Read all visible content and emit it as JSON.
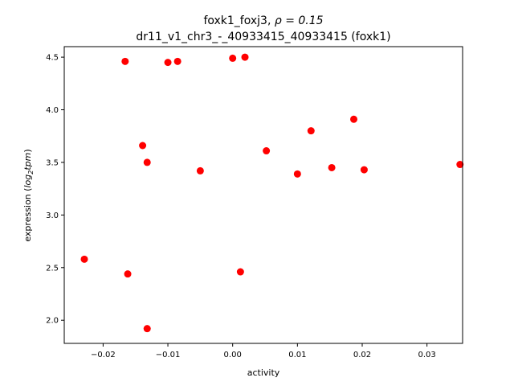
{
  "chart_data": {
    "type": "scatter",
    "title_line1": "foxk1_foxj3, ",
    "title_rho": "ρ = 0.15",
    "title_line2": "dr11_v1_chr3_-_40933415_40933415 (foxk1)",
    "xlabel": "activity",
    "ylabel_prefix": "expression (",
    "ylabel_math": "log",
    "ylabel_sub": "2",
    "ylabel_math2": "tpm",
    "ylabel_suffix": ")",
    "xlim": [
      -0.026,
      0.0355
    ],
    "ylim": [
      1.78,
      4.6
    ],
    "xticks": [
      -0.02,
      -0.01,
      0.0,
      0.01,
      0.02,
      0.03
    ],
    "xtick_labels": [
      "−0.02",
      "−0.01",
      "0.00",
      "0.01",
      "0.02",
      "0.03"
    ],
    "yticks": [
      2.0,
      2.5,
      3.0,
      3.5,
      4.0,
      4.5
    ],
    "ytick_labels": [
      "2.0",
      "2.5",
      "3.0",
      "3.5",
      "4.0",
      "4.5"
    ],
    "point_color": "#ff0000",
    "points": [
      {
        "x": -0.0229,
        "y": 2.58
      },
      {
        "x": -0.0166,
        "y": 4.46
      },
      {
        "x": -0.0162,
        "y": 2.44
      },
      {
        "x": -0.0139,
        "y": 3.66
      },
      {
        "x": -0.0132,
        "y": 3.5
      },
      {
        "x": -0.0132,
        "y": 1.92
      },
      {
        "x": -0.01,
        "y": 4.45
      },
      {
        "x": -0.0085,
        "y": 4.46
      },
      {
        "x": -0.005,
        "y": 3.42
      },
      {
        "x": 0.0,
        "y": 4.49
      },
      {
        "x": 0.0012,
        "y": 2.46
      },
      {
        "x": 0.0019,
        "y": 4.5
      },
      {
        "x": 0.0052,
        "y": 3.61
      },
      {
        "x": 0.01,
        "y": 3.39
      },
      {
        "x": 0.0121,
        "y": 3.8
      },
      {
        "x": 0.0153,
        "y": 3.45
      },
      {
        "x": 0.0187,
        "y": 3.91
      },
      {
        "x": 0.0203,
        "y": 3.43
      },
      {
        "x": 0.0351,
        "y": 3.48
      }
    ]
  }
}
